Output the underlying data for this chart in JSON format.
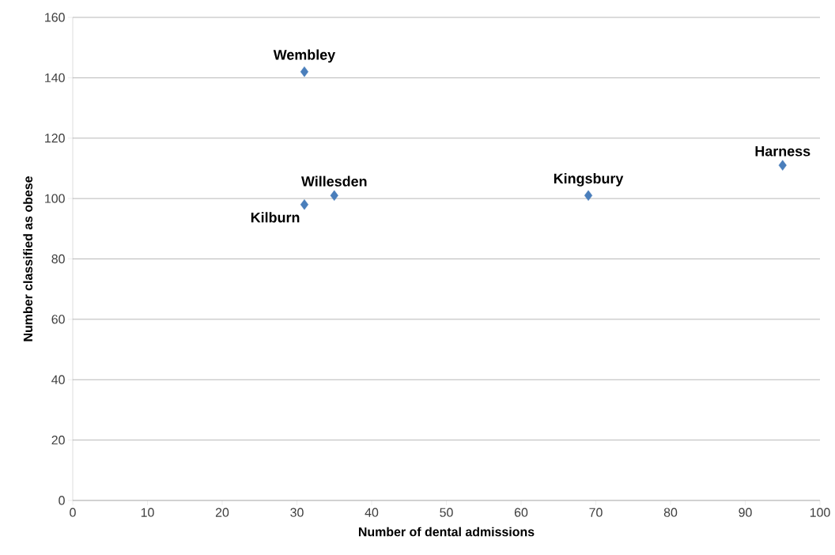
{
  "chart_data": {
    "type": "scatter",
    "xlabel": "Number of dental admissions",
    "ylabel": "Number classified as obese",
    "x": [
      31,
      31,
      35,
      69,
      95
    ],
    "series": [
      {
        "color": "#4a7ebb",
        "values": [
          142,
          98,
          101,
          101,
          111
        ]
      }
    ],
    "xlim": [
      0,
      100
    ],
    "xticks": [
      0,
      10,
      20,
      30,
      40,
      50,
      60,
      70,
      80,
      90,
      100
    ],
    "ylim": [
      0,
      160
    ],
    "yticks": [
      0,
      20,
      40,
      60,
      80,
      100,
      120,
      140,
      160
    ],
    "grid": "y",
    "marker": "diamond",
    "annotations": [
      {
        "text": "Wembley",
        "x": 31,
        "y": 142
      },
      {
        "text": "Kilburn",
        "x": 31,
        "y": 98
      },
      {
        "text": "Willesden",
        "x": 35,
        "y": 101
      },
      {
        "text": "Kingsbury",
        "x": 69,
        "y": 101
      },
      {
        "text": "Harness",
        "x": 95,
        "y": 111
      }
    ]
  }
}
